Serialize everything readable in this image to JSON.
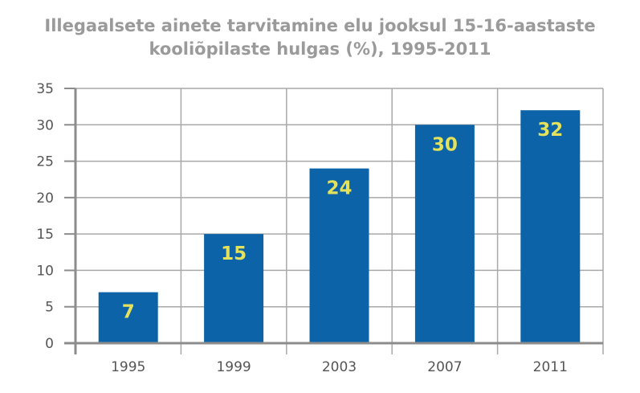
{
  "chart_data": {
    "type": "bar",
    "title": [
      "Illegaalsete ainete tarvitamine elu jooksul 15-16-aastaste",
      "kooliõpilaste hulgas (%), 1995-2011"
    ],
    "categories": [
      "1995",
      "1999",
      "2003",
      "2007",
      "2011"
    ],
    "values": [
      7,
      15,
      24,
      30,
      32
    ],
    "data_labels": [
      "7",
      "15",
      "24",
      "30",
      "32"
    ],
    "y_ticks": [
      "0",
      "5",
      "10",
      "15",
      "20",
      "25",
      "30",
      "35"
    ],
    "ylim": [
      0,
      35
    ],
    "grid": true,
    "legend": "none",
    "bar_color": "#0d63a8",
    "label_color": "#e4e25a",
    "grid_color": "#a9a9a9",
    "axis_color": "#8c8c8c",
    "tick_label_color": "#555555"
  }
}
